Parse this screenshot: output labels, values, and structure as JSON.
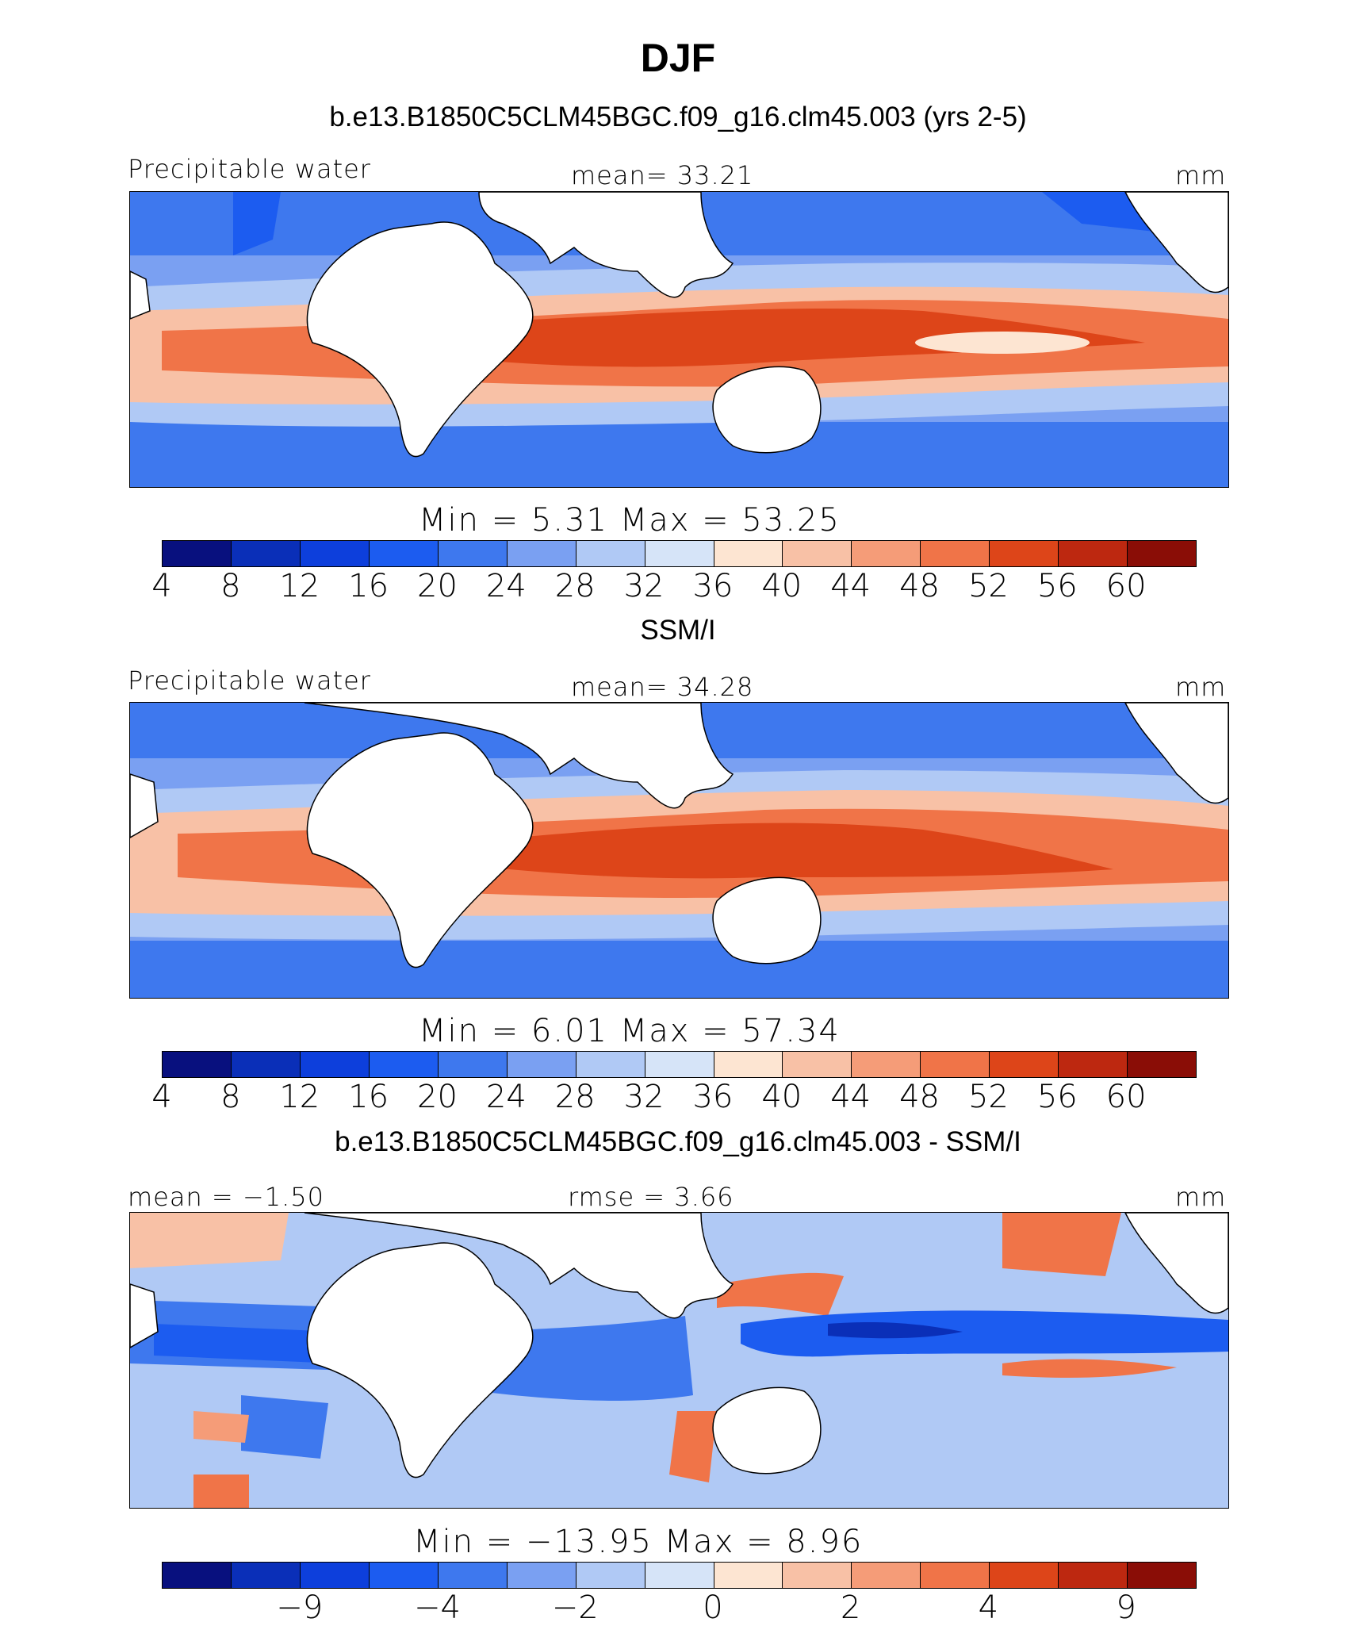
{
  "figure": {
    "title": "DJF",
    "colors": {
      "continents": "#ffffff",
      "coastline": "#000000"
    }
  },
  "panels": [
    {
      "subtitle": "b.e13.B1850C5CLM45BGC.f09_g16.clm45.003 (yrs 2-5)",
      "left_label": "Precipitable water",
      "center_label": "mean=  33.21",
      "right_label": "mm",
      "stats": "Min =    5.31  Max =   53.25",
      "colorbar_labels": [
        "4",
        "8",
        "12",
        "16",
        "20",
        "24",
        "28",
        "32",
        "36",
        "40",
        "44",
        "48",
        "52",
        "56",
        "60"
      ],
      "colorbar_colors": [
        "#08107e",
        "#0a2fb8",
        "#0d3fdc",
        "#1c5cf0",
        "#3e78ee",
        "#7aa0f2",
        "#b0c9f5",
        "#d6e4f8",
        "#fde5d2",
        "#f8c1a6",
        "#f59c78",
        "#f07448",
        "#dd4519",
        "#bd2810",
        "#8a0d06"
      ]
    },
    {
      "subtitle": "SSM/I",
      "left_label": "Precipitable water",
      "center_label": "mean=  34.28",
      "right_label": "mm",
      "stats": "Min =    6.01  Max =   57.34",
      "colorbar_labels": [
        "4",
        "8",
        "12",
        "16",
        "20",
        "24",
        "28",
        "32",
        "36",
        "40",
        "44",
        "48",
        "52",
        "56",
        "60"
      ],
      "colorbar_colors": [
        "#08107e",
        "#0a2fb8",
        "#0d3fdc",
        "#1c5cf0",
        "#3e78ee",
        "#7aa0f2",
        "#b0c9f5",
        "#d6e4f8",
        "#fde5d2",
        "#f8c1a6",
        "#f59c78",
        "#f07448",
        "#dd4519",
        "#bd2810",
        "#8a0d06"
      ]
    },
    {
      "subtitle": "b.e13.B1850C5CLM45BGC.f09_g16.clm45.003 - SSM/I",
      "left_label": "mean =  −1.50",
      "center_label": "rmse =    3.66",
      "right_label": "mm",
      "stats": "Min = −13.95  Max =    8.96",
      "colorbar_labels": [
        "−9",
        "−4",
        "−2",
        "0",
        "2",
        "4",
        "9"
      ],
      "colorbar_colors": [
        "#08107e",
        "#0a2fb8",
        "#0d3fdc",
        "#1c5cf0",
        "#3e78ee",
        "#7aa0f2",
        "#b0c9f5",
        "#d6e4f8",
        "#fde5d2",
        "#f8c1a6",
        "#f59c78",
        "#f07448",
        "#dd4519",
        "#bd2810",
        "#8a0d06"
      ]
    }
  ]
}
